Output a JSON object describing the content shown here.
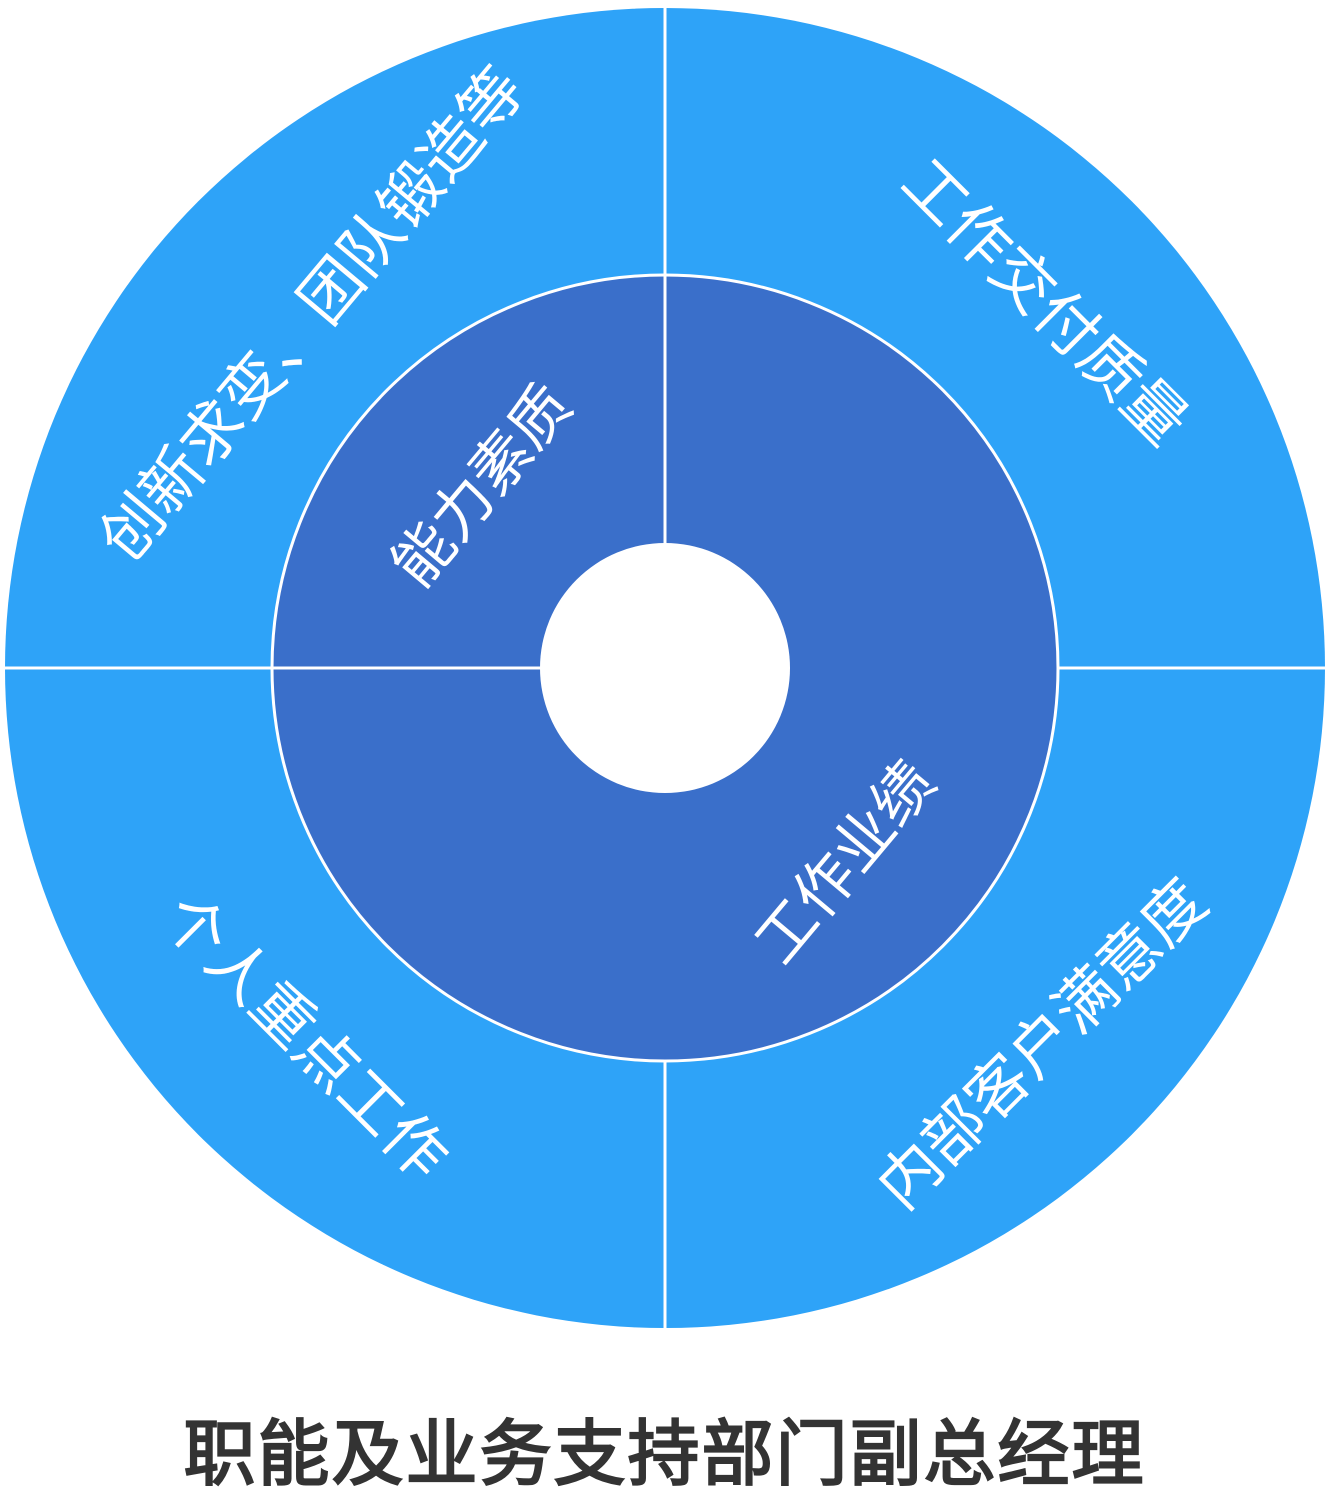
{
  "title": "职能及业务支持部门副总经理",
  "colors": {
    "outer_ring": "#2ea3f8",
    "inner_ring": "#3a6fca",
    "divider": "#ffffff",
    "center": "#ffffff",
    "label": "#ffffff",
    "title": "#333333"
  },
  "inner_segments": [
    {
      "label": "能力素质",
      "quadrants": [
        "top-left"
      ]
    },
    {
      "label": "工作业绩",
      "quadrants": [
        "top-right",
        "bottom-left",
        "bottom-right"
      ]
    }
  ],
  "outer_segments": [
    {
      "label": "创新求变、团队锻造等",
      "quadrant": "top-left"
    },
    {
      "label": "工作交付质量",
      "quadrant": "top-right"
    },
    {
      "label": "个人重点工作",
      "quadrant": "bottom-left"
    },
    {
      "label": "内部客户满意度",
      "quadrant": "bottom-right"
    }
  ]
}
